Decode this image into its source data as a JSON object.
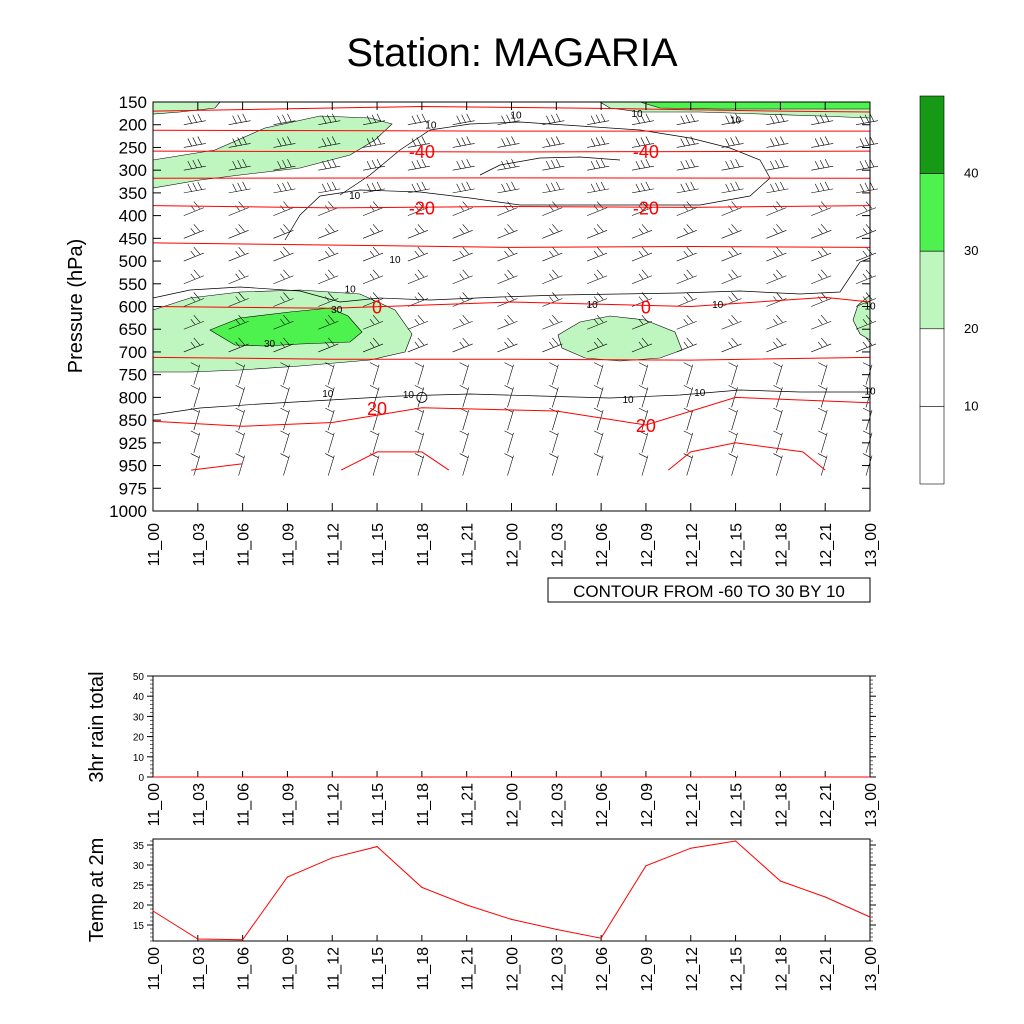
{
  "title": "Station: MAGARIA",
  "time_labels": [
    "11_00",
    "11_03",
    "11_06",
    "11_09",
    "11_12",
    "11_15",
    "11_18",
    "11_21",
    "12_00",
    "12_03",
    "12_06",
    "12_09",
    "12_12",
    "12_15",
    "12_18",
    "12_21",
    "13_00"
  ],
  "chart_data": [
    {
      "type": "heatmap",
      "title": "Station: MAGARIA",
      "ylabel": "Pressure (hPa)",
      "xlabel": "",
      "pressure_levels": [
        150,
        200,
        250,
        300,
        350,
        400,
        450,
        500,
        550,
        600,
        650,
        700,
        750,
        800,
        850,
        925,
        950,
        975,
        1000
      ],
      "ylim": [
        1000,
        150
      ],
      "info_label": "CONTOUR FROM -60 TO 30 BY 10",
      "colorbar": {
        "labels": [
          "10",
          "20",
          "30",
          "40"
        ],
        "colors": [
          "#ffffff",
          "#ffffff",
          "#bff5bf",
          "#4ef24e",
          "#169a16"
        ]
      },
      "temperature_contour_labels": [
        {
          "label": "-40",
          "time": "11_18",
          "pressure": 258
        },
        {
          "label": "-40",
          "time": "12_09",
          "pressure": 258
        },
        {
          "label": "-20",
          "time": "11_18",
          "pressure": 382
        },
        {
          "label": "-20",
          "time": "12_09",
          "pressure": 382
        },
        {
          "label": "0",
          "time": "11_15",
          "pressure": 600
        },
        {
          "label": "0",
          "time": "12_09",
          "pressure": 600
        },
        {
          "label": "20",
          "time": "11_15",
          "pressure": 823
        },
        {
          "label": "20",
          "time": "12_09",
          "pressure": 866
        }
      ],
      "wind_contour_labels": [
        "10",
        "10",
        "10",
        "10",
        "10",
        "10",
        "10",
        "10",
        "10",
        "10",
        "10",
        "10",
        "10",
        "10",
        "10",
        "30",
        "30"
      ]
    },
    {
      "type": "line",
      "ylabel": "3hr rain total",
      "ylim": [
        0,
        50
      ],
      "yticks": [
        "0",
        "10",
        "20",
        "30",
        "40",
        "50"
      ],
      "x": [
        "11_00",
        "11_03",
        "11_06",
        "11_09",
        "11_12",
        "11_15",
        "11_18",
        "11_21",
        "12_00",
        "12_03",
        "12_06",
        "12_09",
        "12_12",
        "12_15",
        "12_18",
        "12_21",
        "13_00"
      ],
      "values": [
        0,
        0,
        0,
        0,
        0,
        0,
        0,
        0,
        0,
        0,
        0,
        0,
        0,
        0,
        0,
        0,
        0
      ]
    },
    {
      "type": "line",
      "ylabel": "Temp at 2m",
      "ylim": [
        11,
        36.5
      ],
      "yticks": [
        "15",
        "20",
        "25",
        "30",
        "35"
      ],
      "x": [
        "11_00",
        "11_03",
        "11_06",
        "11_09",
        "11_12",
        "11_15",
        "11_18",
        "11_21",
        "12_00",
        "12_03",
        "12_06",
        "12_09",
        "12_12",
        "12_15",
        "12_18",
        "12_21",
        "13_00"
      ],
      "values": [
        18.5,
        11.5,
        11.3,
        27,
        31.8,
        34.6,
        24.4,
        20,
        16.4,
        13.9,
        11.7,
        29.8,
        34.2,
        36,
        26,
        22,
        17
      ],
      "line_color": "#ff0000"
    }
  ]
}
